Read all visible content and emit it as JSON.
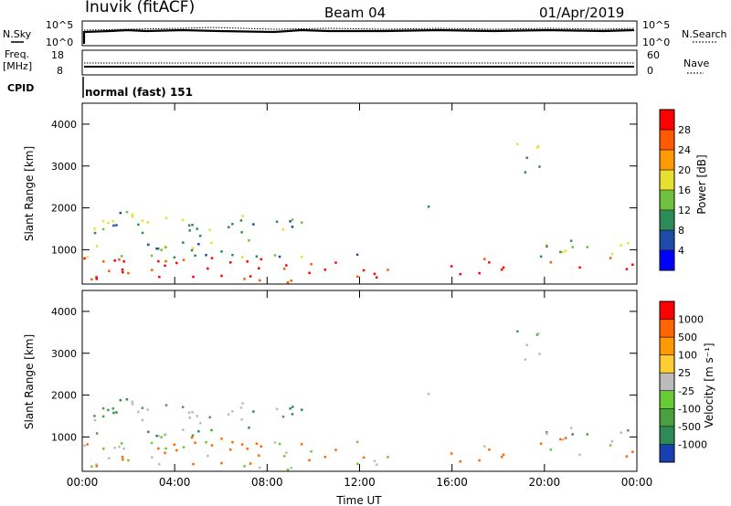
{
  "header": {
    "station": "Inuvik (fitACF)",
    "beam": "Beam 04",
    "date": "01/Apr/2019"
  },
  "top_panels": {
    "nsky_label": "N.Sky",
    "nsky_ticks": [
      "10^5",
      "10^0"
    ],
    "nsearch_label": "N.Search",
    "nsearch_ticks": [
      "10^5",
      "10^0"
    ],
    "freq_label_1": "Freq.",
    "freq_label_2": "[MHz]",
    "freq_ticks": [
      "18",
      "8"
    ],
    "nave_label": "Nave",
    "nave_ticks": [
      "60",
      "0"
    ],
    "cpid_label": "CPID",
    "cpid_value": "normal (fast) 151"
  },
  "chart_data": [
    {
      "type": "heatmap",
      "quantity": "Power",
      "ylabel": "Slant Range [km]",
      "ylim": [
        180,
        4500
      ],
      "yticks": [
        "1000",
        "2000",
        "3000",
        "4000"
      ],
      "colorbar_label": "Power [dB]",
      "colorbar_ticks": [
        "28",
        "24",
        "20",
        "16",
        "12",
        "8",
        "4"
      ],
      "colorbar_colors": [
        "#0000ff",
        "#1e4aa8",
        "#2e8b57",
        "#70c040",
        "#e8e030",
        "#ff9a00",
        "#ff5a00",
        "#ff0000"
      ]
    },
    {
      "type": "heatmap",
      "quantity": "Velocity",
      "xlabel": "Time UT",
      "xticks": [
        "00:00",
        "04:00",
        "08:00",
        "12:00",
        "16:00",
        "20:00",
        "00:00"
      ],
      "ylabel": "Slant Range [km]",
      "ylim": [
        180,
        4500
      ],
      "yticks": [
        "1000",
        "2000",
        "3000",
        "4000"
      ],
      "colorbar_label": "Velocity [m s⁻¹]",
      "colorbar_ticks": [
        "1000",
        "500",
        "100",
        "25",
        "-25",
        "-100",
        "-500",
        "-1000"
      ],
      "colorbar_colors": [
        "#1a3fb0",
        "#2e8b57",
        "#4aa040",
        "#66cc33",
        "#bbbbbb",
        "#ffcc33",
        "#ff9900",
        "#ff6600",
        "#ff0000"
      ]
    }
  ]
}
